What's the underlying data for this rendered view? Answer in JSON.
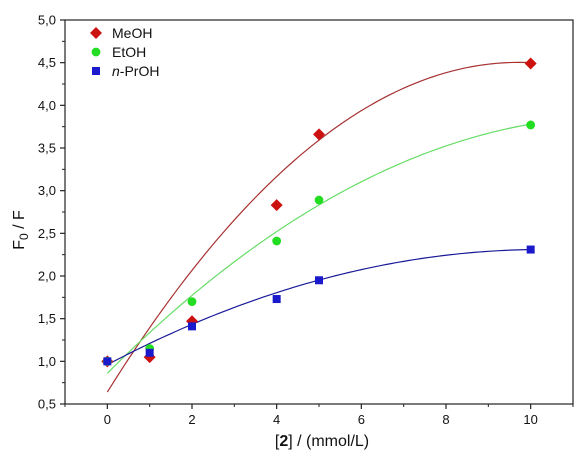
{
  "chart_data": {
    "type": "scatter",
    "xlabel": {
      "bold": "2",
      "rest": " / (mmol/L)"
    },
    "ylabel": {
      "main": "F",
      "sub": "0",
      "rest": " / F"
    },
    "xlim": [
      -1,
      11
    ],
    "ylim": [
      0.5,
      5.0
    ],
    "x_ticks": [
      0,
      2,
      4,
      6,
      8,
      10
    ],
    "x_tick_labels": [
      "0",
      "2",
      "4",
      "6",
      "8",
      "10"
    ],
    "y_ticks": [
      0.5,
      1.0,
      1.5,
      2.0,
      2.5,
      3.0,
      3.5,
      4.0,
      4.5,
      5.0
    ],
    "y_tick_labels": [
      "0,5",
      "1,0",
      "1,5",
      "2,0",
      "2,5",
      "3,0",
      "3,5",
      "4,0",
      "4,5",
      "5,0"
    ],
    "grid": false,
    "legend_position": "top-left",
    "series": [
      {
        "name": "MeOH",
        "name_italic_prefix": "",
        "name_rest": "MeOH",
        "marker": "diamond",
        "color": "#cc1111",
        "line_color": "#a83232",
        "x": [
          0,
          1,
          2,
          4,
          5,
          10
        ],
        "y": [
          1.0,
          1.05,
          1.47,
          2.83,
          3.66,
          4.49
        ],
        "fit_coeffs": [
          0.64,
          0.795,
          -0.0409
        ]
      },
      {
        "name": "EtOH",
        "name_italic_prefix": "",
        "name_rest": "EtOH",
        "marker": "circle",
        "color": "#22dd22",
        "line_color": "#66dd66",
        "x": [
          0,
          1,
          2,
          4,
          5,
          10
        ],
        "y": [
          1.0,
          1.15,
          1.7,
          2.41,
          2.89,
          3.77
        ],
        "fit_coeffs": [
          0.86,
          0.497,
          -0.0205
        ]
      },
      {
        "name": "n-PrOH",
        "name_italic_prefix": "n",
        "name_rest": "-PrOH",
        "marker": "square",
        "color": "#1a1acc",
        "line_color": "#1a1a99",
        "x": [
          0,
          1,
          2,
          4,
          5,
          10
        ],
        "y": [
          1.0,
          1.1,
          1.41,
          1.73,
          1.95,
          2.31
        ],
        "fit_coeffs": [
          0.96,
          0.262,
          -0.0127
        ]
      }
    ]
  }
}
